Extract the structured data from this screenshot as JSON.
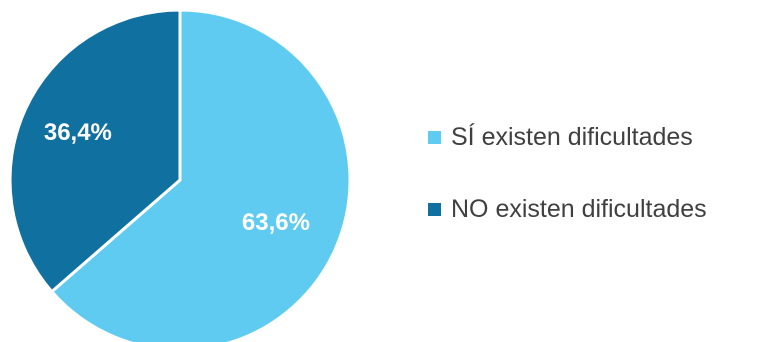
{
  "chart_data": {
    "type": "pie",
    "categories": [
      "SÍ existen dificultades",
      "NO existen dificultades"
    ],
    "values": [
      63.6,
      36.4
    ],
    "data_labels": [
      "63,6%",
      "36,4%"
    ],
    "colors": [
      "#5FCBF1",
      "#10709F"
    ],
    "start_angle_deg": 0,
    "direction": "clockwise",
    "legend_position": "right",
    "title": ""
  }
}
